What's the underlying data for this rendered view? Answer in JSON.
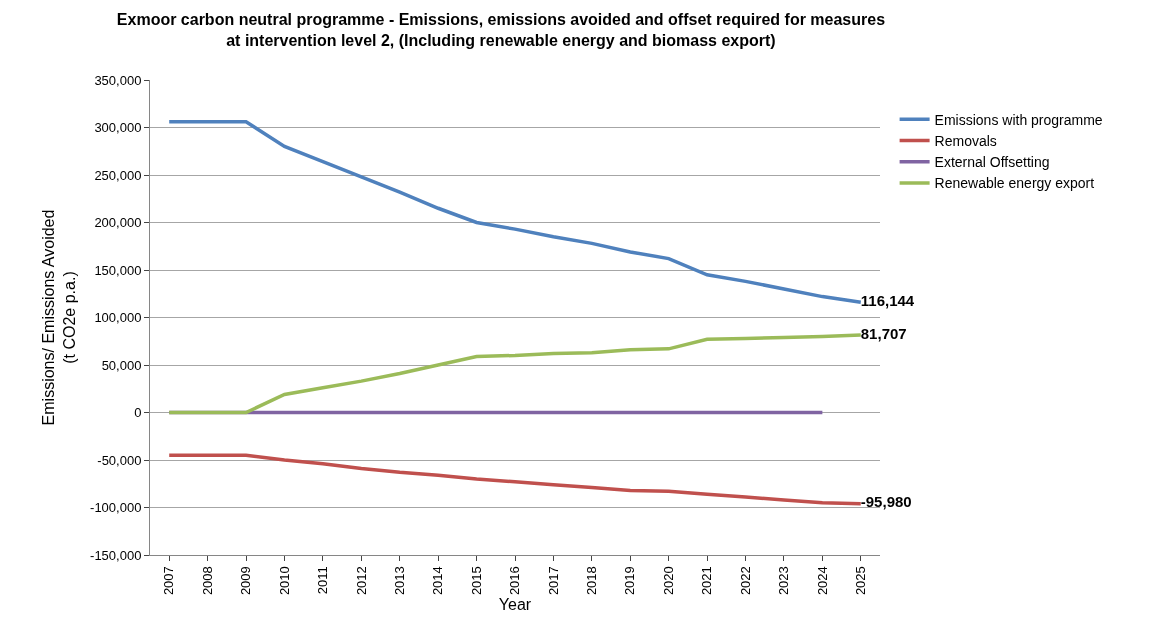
{
  "chart_data": {
    "type": "line",
    "title": "Exmoor carbon neutral programme - Emissions, emissions avoided and offset required for measures\nat intervention level 2, (Including renewable energy and biomass export)",
    "xlabel": "Year",
    "ylabel": "Emissions/ Emissions Avoided\n(t CO2e p.a.)",
    "categories": [
      "2007",
      "2008",
      "2009",
      "2010",
      "2011",
      "2012",
      "2013",
      "2014",
      "2015",
      "2016",
      "2017",
      "2018",
      "2019",
      "2020",
      "2021",
      "2022",
      "2023",
      "2024",
      "2025"
    ],
    "series": [
      {
        "name": "Emissions with programme",
        "color": "#4f81bd",
        "values": [
          306000,
          306000,
          306000,
          280000,
          264000,
          248000,
          232000,
          215000,
          200000,
          193000,
          185000,
          178000,
          169000,
          162000,
          145000,
          138000,
          130000,
          122000,
          116144
        ],
        "value_labels": [
          null,
          null,
          null,
          null,
          null,
          null,
          null,
          null,
          null,
          null,
          null,
          null,
          null,
          null,
          null,
          null,
          null,
          null,
          "116,144"
        ]
      },
      {
        "name": "Removals",
        "color": "#c0504d",
        "values": [
          -45000,
          -45000,
          -45000,
          -50000,
          -54000,
          -59000,
          -63000,
          -66000,
          -70000,
          -73000,
          -76000,
          -79000,
          -82000,
          -83000,
          -86000,
          -89000,
          -92000,
          -95000,
          -95980
        ],
        "value_labels": [
          null,
          null,
          null,
          null,
          null,
          null,
          null,
          null,
          null,
          null,
          null,
          null,
          null,
          null,
          null,
          null,
          null,
          null,
          "-95,980"
        ]
      },
      {
        "name": "External Offsetting",
        "color": "#8064a2",
        "values": [
          0,
          0,
          0,
          0,
          0,
          0,
          0,
          0,
          0,
          0,
          0,
          0,
          0,
          0,
          0,
          0,
          0,
          0,
          null
        ]
      },
      {
        "name": "Renewable energy export",
        "color": "#9bbb59",
        "values": [
          0,
          0,
          0,
          19000,
          26000,
          33000,
          41000,
          50000,
          59000,
          60000,
          62000,
          63000,
          66000,
          67000,
          77000,
          78000,
          79000,
          80000,
          81707
        ],
        "value_labels": [
          null,
          null,
          null,
          null,
          null,
          null,
          null,
          null,
          null,
          null,
          null,
          null,
          null,
          null,
          null,
          null,
          null,
          null,
          "81,707"
        ]
      }
    ],
    "ylim": [
      -150000,
      350000
    ],
    "yticks": [
      {
        "value": -150000,
        "label": "-150,000"
      },
      {
        "value": -100000,
        "label": "-100,000"
      },
      {
        "value": -50000,
        "label": "-50,000"
      },
      {
        "value": 0,
        "label": "0"
      },
      {
        "value": 50000,
        "label": "50,000"
      },
      {
        "value": 100000,
        "label": "100,000"
      },
      {
        "value": 150000,
        "label": "150,000"
      },
      {
        "value": 200000,
        "label": "200,000"
      },
      {
        "value": 250000,
        "label": "250,000"
      },
      {
        "value": 300000,
        "label": "300,000"
      },
      {
        "value": 350000,
        "label": "350,000"
      }
    ],
    "grid": "y",
    "legend": "right",
    "marker": "none",
    "line_style": "solid"
  }
}
